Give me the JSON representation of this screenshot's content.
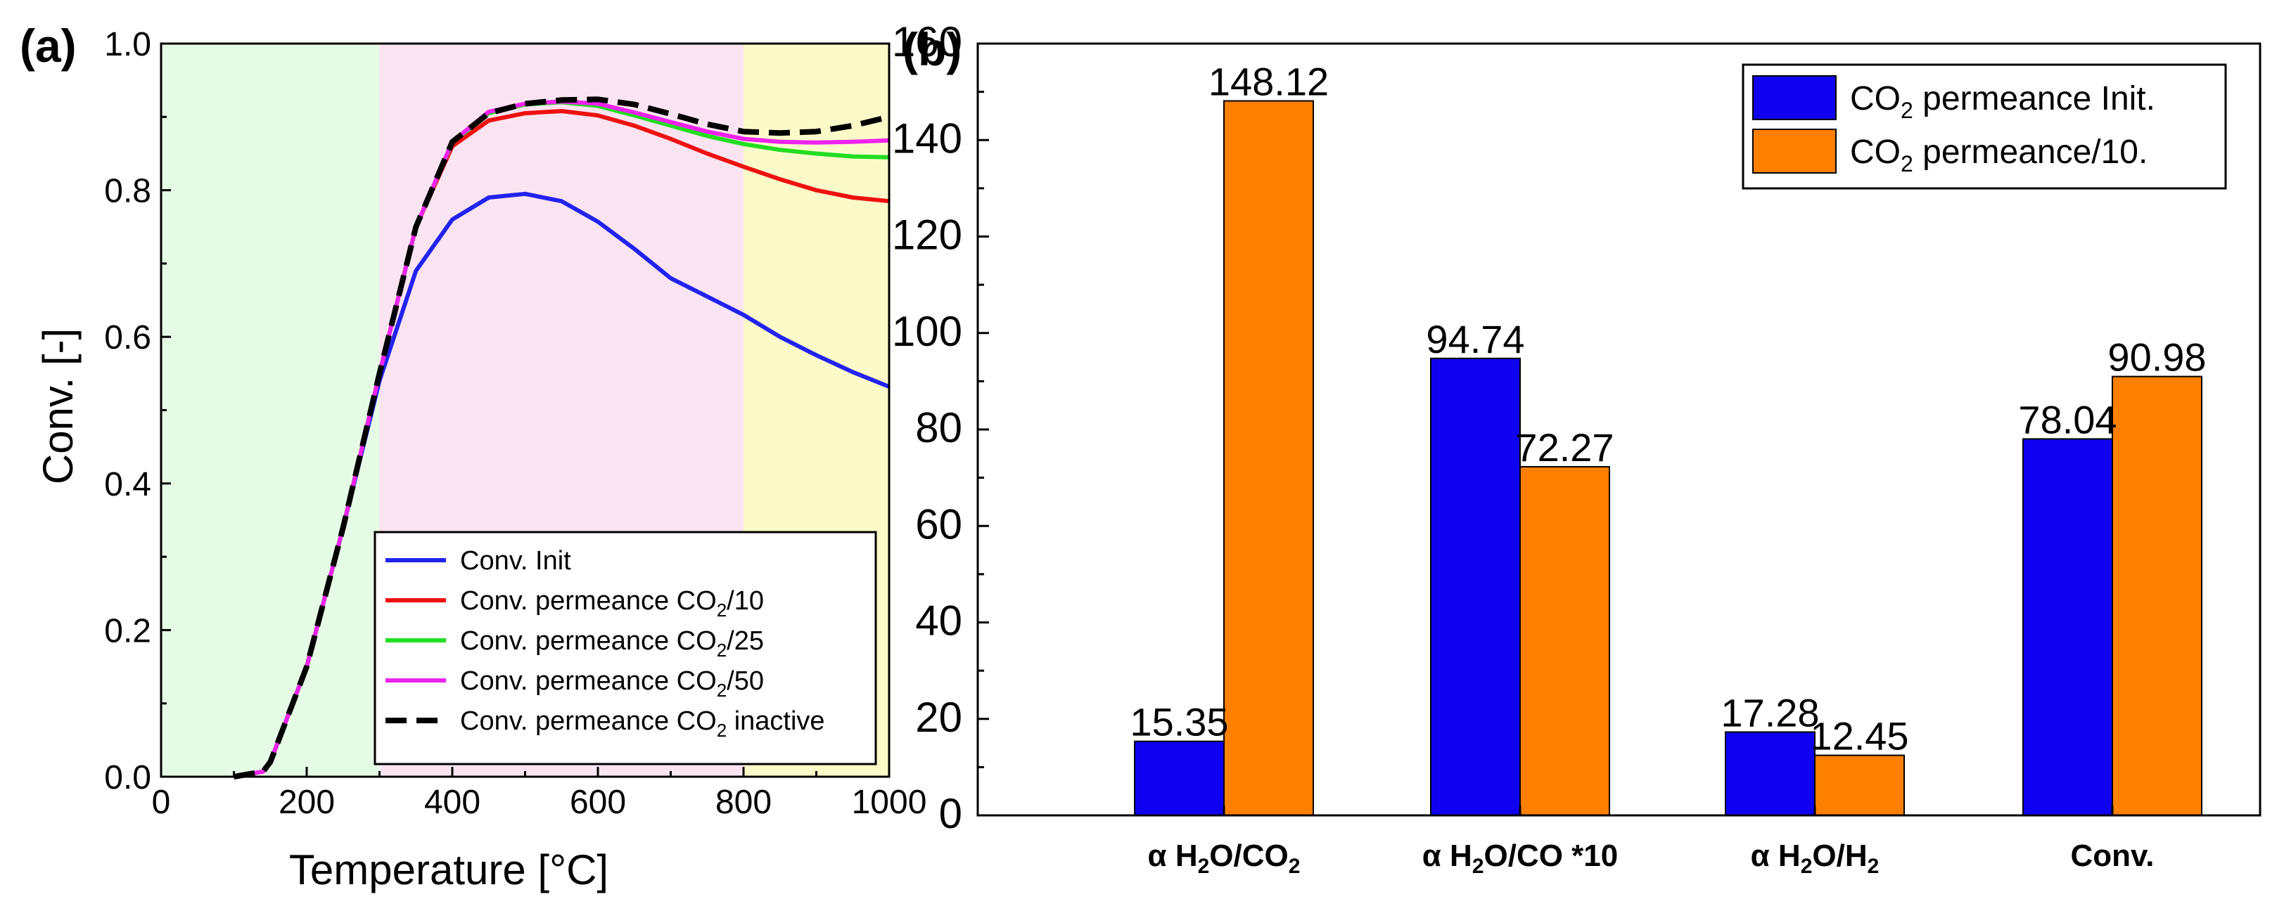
{
  "chart_data": [
    {
      "type": "line",
      "panel_label": "(a)",
      "xlabel": "Temperature [°C]",
      "xlabel_main": "Temperature [",
      "xlabel_unit": "°C]",
      "ylabel": "Conv. [-]",
      "xlim": [
        0,
        1000
      ],
      "ylim": [
        0,
        1.0
      ],
      "xticks": [
        "0",
        "200",
        "400",
        "600",
        "800",
        "1000"
      ],
      "yticks": [
        "0.0",
        "0.2",
        "0.4",
        "0.6",
        "0.8",
        "1.0"
      ],
      "regions": [
        {
          "x0": 0,
          "x1": 300,
          "color": "#e6fbe6"
        },
        {
          "x0": 300,
          "x1": 800,
          "color": "#fbe4f1"
        },
        {
          "x0": 800,
          "x1": 1000,
          "color": "#fbfbca"
        }
      ],
      "legend_position": "bottom-right",
      "series": [
        {
          "name": "Conv. Init",
          "legend_main": "Conv. Init",
          "legend_sub": "",
          "legend_tail": "",
          "color": "#2222ee",
          "dash": false,
          "x": [
            100,
            140,
            150,
            200,
            250,
            300,
            350,
            400,
            450,
            500,
            550,
            600,
            650,
            700,
            750,
            800,
            850,
            900,
            950,
            1000
          ],
          "y": [
            0.0,
            0.007,
            0.02,
            0.15,
            0.34,
            0.54,
            0.69,
            0.76,
            0.79,
            0.795,
            0.785,
            0.757,
            0.72,
            0.68,
            0.655,
            0.63,
            0.6,
            0.575,
            0.552,
            0.532
          ]
        },
        {
          "name": "Conv. permeance CO2/10",
          "legend_main": "Conv. permeance CO",
          "legend_sub": "2",
          "legend_tail": "/10",
          "color": "#ee1111",
          "dash": false,
          "x": [
            100,
            140,
            150,
            200,
            250,
            300,
            350,
            400,
            450,
            500,
            550,
            600,
            650,
            700,
            750,
            800,
            850,
            900,
            950,
            1000
          ],
          "y": [
            0.0,
            0.007,
            0.02,
            0.15,
            0.34,
            0.55,
            0.75,
            0.86,
            0.895,
            0.905,
            0.908,
            0.902,
            0.888,
            0.87,
            0.85,
            0.832,
            0.815,
            0.8,
            0.79,
            0.785
          ]
        },
        {
          "name": "Conv. permeance CO2/25",
          "legend_main": "Conv. permeance CO",
          "legend_sub": "2",
          "legend_tail": "/25",
          "color": "#22dd22",
          "dash": false,
          "x": [
            100,
            140,
            150,
            200,
            250,
            300,
            350,
            400,
            450,
            500,
            550,
            600,
            650,
            700,
            750,
            800,
            850,
            900,
            950,
            1000
          ],
          "y": [
            0.0,
            0.007,
            0.02,
            0.15,
            0.34,
            0.55,
            0.75,
            0.865,
            0.905,
            0.917,
            0.92,
            0.915,
            0.902,
            0.888,
            0.874,
            0.863,
            0.855,
            0.85,
            0.846,
            0.845
          ]
        },
        {
          "name": "Conv. permeance CO2/50",
          "legend_main": "Conv. permeance CO",
          "legend_sub": "2",
          "legend_tail": "/50",
          "color": "#ee22ee",
          "dash": false,
          "x": [
            100,
            140,
            150,
            200,
            250,
            300,
            350,
            400,
            450,
            500,
            550,
            600,
            650,
            700,
            750,
            800,
            850,
            900,
            950,
            1000
          ],
          "y": [
            0.0,
            0.007,
            0.02,
            0.15,
            0.34,
            0.55,
            0.75,
            0.866,
            0.907,
            0.918,
            0.921,
            0.918,
            0.906,
            0.893,
            0.88,
            0.87,
            0.866,
            0.865,
            0.866,
            0.868
          ]
        },
        {
          "name": "Conv. permeance CO2 inactive",
          "legend_main": "Conv. permeance CO",
          "legend_sub": "2",
          "legend_tail": " inactive",
          "color": "#000000",
          "dash": true,
          "x": [
            100,
            140,
            150,
            200,
            250,
            300,
            350,
            400,
            450,
            500,
            550,
            600,
            650,
            700,
            750,
            800,
            850,
            900,
            950,
            1000
          ],
          "y": [
            0.0,
            0.007,
            0.02,
            0.15,
            0.34,
            0.55,
            0.75,
            0.866,
            0.905,
            0.918,
            0.923,
            0.924,
            0.917,
            0.904,
            0.89,
            0.88,
            0.878,
            0.88,
            0.888,
            0.9
          ]
        }
      ]
    },
    {
      "type": "bar",
      "panel_label": "(b)",
      "categories": [
        {
          "pre": "α H",
          "s1": "2",
          "mid": "O/CO",
          "s2": "2",
          "post": ""
        },
        {
          "pre": "α H",
          "s1": "2",
          "mid": "O/CO *10",
          "s2": "",
          "post": ""
        },
        {
          "pre": "α H",
          "s1": "2",
          "mid": "O/H",
          "s2": "2",
          "post": ""
        },
        {
          "pre": "Conv.",
          "s1": "",
          "mid": "",
          "s2": "",
          "post": ""
        }
      ],
      "ylim": [
        0,
        160
      ],
      "yticks": [
        "0",
        "20",
        "40",
        "60",
        "80",
        "100",
        "120",
        "140",
        "160"
      ],
      "legend_position": "top-right",
      "series": [
        {
          "name": "CO2 permeance Init.",
          "legend_main": "CO",
          "legend_sub": "2",
          "legend_tail": " permeance Init.",
          "color": "#0f00f0",
          "values": [
            15.35,
            94.74,
            17.28,
            78.04
          ],
          "labels": [
            "15.35",
            "94.74",
            "17.28",
            "78.04"
          ]
        },
        {
          "name": "CO2 permeance/10.",
          "legend_main": "CO",
          "legend_sub": "2",
          "legend_tail": " permeance/10.",
          "color": "#ff7f00",
          "values": [
            148.12,
            72.27,
            12.45,
            90.98
          ],
          "labels": [
            "148.12",
            "72.27",
            "12.45",
            "90.98"
          ]
        }
      ]
    }
  ]
}
